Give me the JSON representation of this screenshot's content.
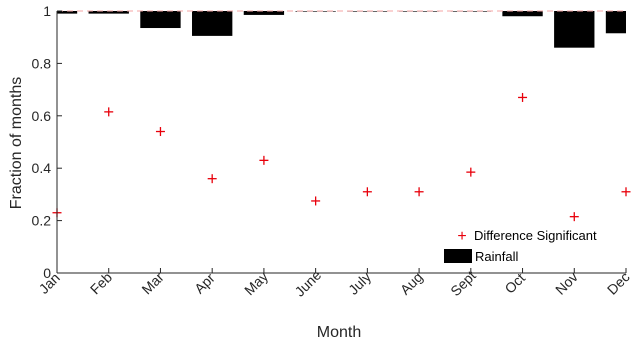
{
  "chart_data": {
    "type": "scatter",
    "xlabel": "Month",
    "ylabel": "Fraction of months",
    "categories": [
      "Jan",
      "Feb",
      "Mar",
      "Apr",
      "May",
      "June",
      "July",
      "Aug",
      "Sept",
      "Oct",
      "Nov",
      "Dec"
    ],
    "ylim": [
      0,
      1
    ],
    "yticks": [
      "0",
      "0.2",
      "0.4",
      "0.6",
      "0.8",
      "1"
    ],
    "grid": false,
    "legend_position": "bottom-right",
    "series": [
      {
        "name": "Difference Significant",
        "type": "scatter",
        "marker": "+",
        "color": "#e8000b",
        "values": [
          0.23,
          0.615,
          0.54,
          0.36,
          0.43,
          0.275,
          0.31,
          0.31,
          0.385,
          0.67,
          0.215,
          0.31
        ]
      },
      {
        "name": "Rainfall",
        "type": "bar",
        "color": "#000000",
        "baseline": 1,
        "values": [
          0.99,
          0.99,
          0.935,
          0.905,
          0.985,
          1.0,
          1.0,
          1.0,
          1.0,
          0.98,
          0.86,
          0.915
        ]
      }
    ],
    "reference_line": {
      "y": 1,
      "color": "#f4a6a6"
    }
  }
}
